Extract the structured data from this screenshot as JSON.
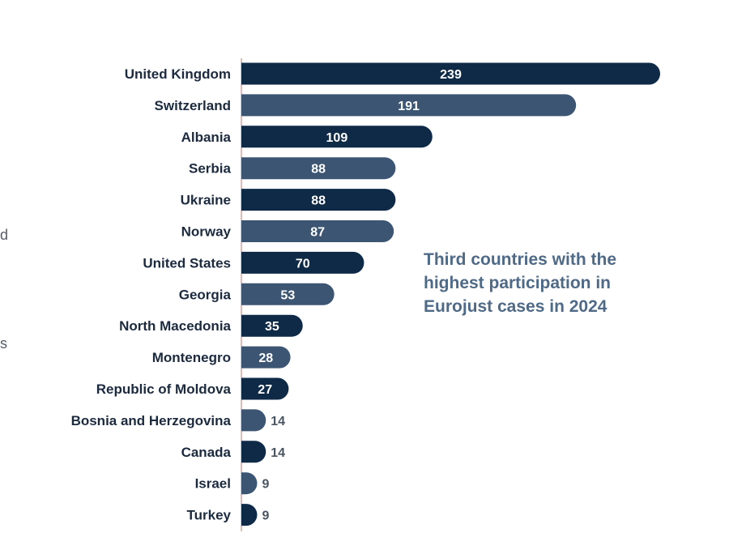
{
  "side_fragments": [
    "d",
    "s"
  ],
  "chart_data": {
    "type": "bar",
    "orientation": "horizontal",
    "title_lines": [
      "Third countries with the",
      "highest participation in",
      "Eurojust cases in 2024"
    ],
    "categories": [
      "United Kingdom",
      "Switzerland",
      "Albania",
      "Serbia",
      "Ukraine",
      "Norway",
      "United States",
      "Georgia",
      "North Macedonia",
      "Montenegro",
      "Republic of Moldova",
      "Bosnia and Herzegovina",
      "Canada",
      "Israel",
      "Turkey"
    ],
    "values": [
      239,
      191,
      109,
      88,
      88,
      87,
      70,
      53,
      35,
      28,
      27,
      14,
      14,
      9,
      9
    ],
    "xlim": [
      0,
      239
    ],
    "grid": false,
    "colors": {
      "dark": "#0e2a47",
      "light": "#3b5573",
      "axis": "#d9a4a0"
    }
  }
}
